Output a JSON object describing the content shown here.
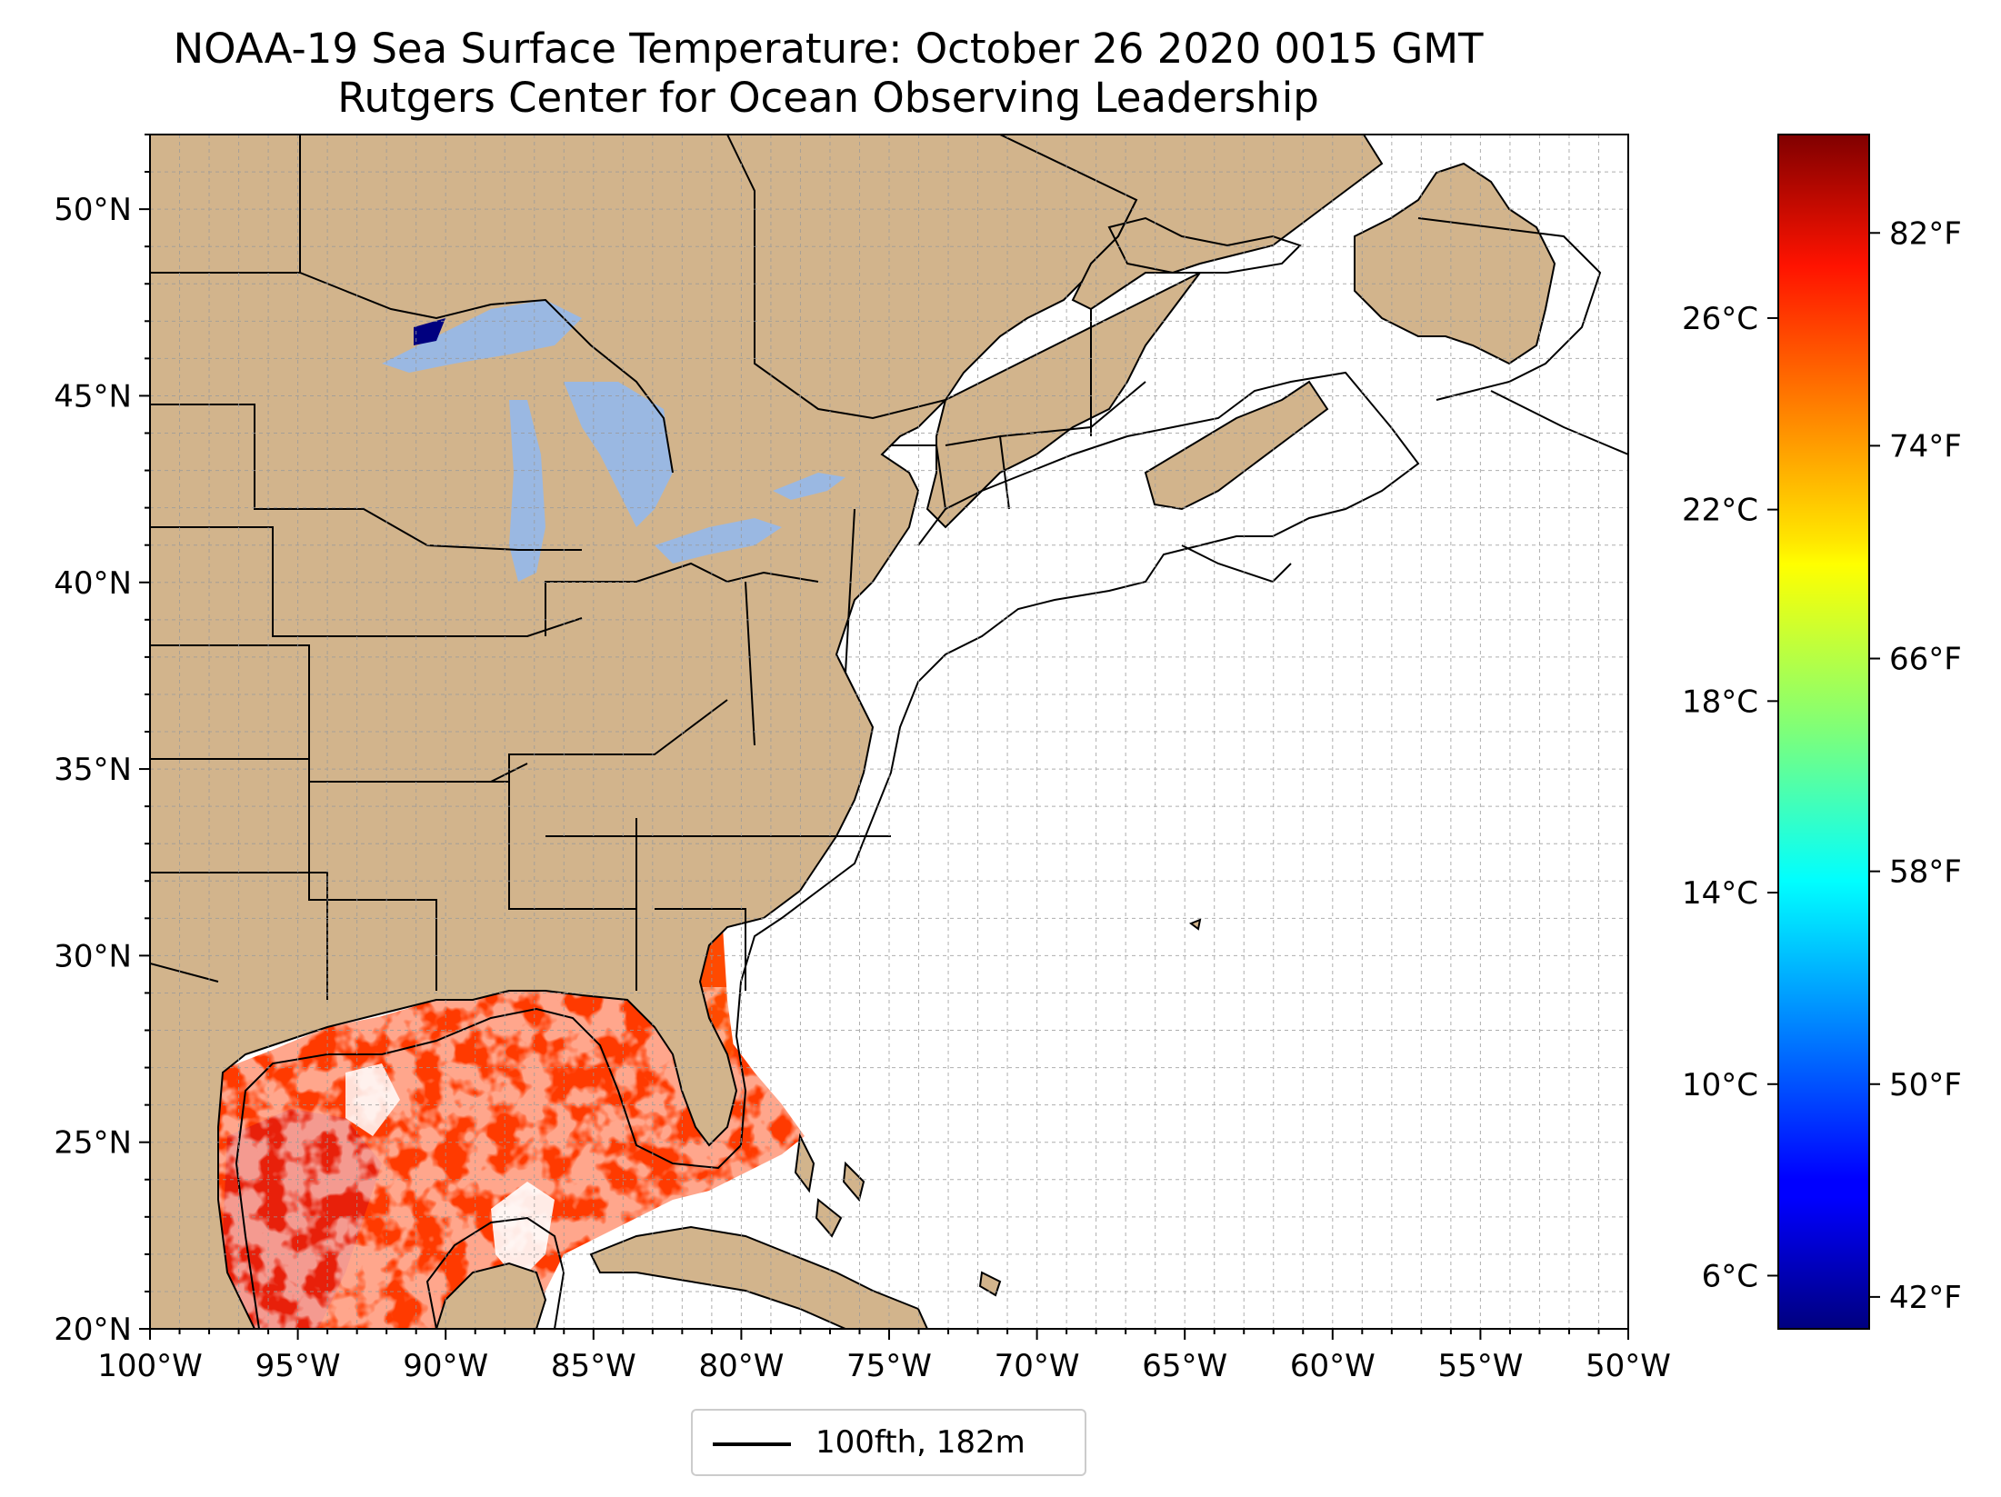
{
  "title": {
    "line1": "NOAA-19 Sea Surface Temperature: October 26 2020 0015 GMT",
    "line2": "Rutgers Center for Ocean Observing Leadership"
  },
  "map": {
    "lon_range": [
      -100,
      -50
    ],
    "lat_range": [
      20,
      52
    ],
    "lon_ticks": [
      {
        "value": -100,
        "label": "100°W"
      },
      {
        "value": -95,
        "label": "95°W"
      },
      {
        "value": -90,
        "label": "90°W"
      },
      {
        "value": -85,
        "label": "85°W"
      },
      {
        "value": -80,
        "label": "80°W"
      },
      {
        "value": -75,
        "label": "75°W"
      },
      {
        "value": -70,
        "label": "70°W"
      },
      {
        "value": -65,
        "label": "65°W"
      },
      {
        "value": -60,
        "label": "60°W"
      },
      {
        "value": -55,
        "label": "55°W"
      },
      {
        "value": -50,
        "label": "50°W"
      }
    ],
    "lat_ticks": [
      {
        "value": 20,
        "label": "20°N"
      },
      {
        "value": 25,
        "label": "25°N"
      },
      {
        "value": 30,
        "label": "30°N"
      },
      {
        "value": 35,
        "label": "35°N"
      },
      {
        "value": 40,
        "label": "40°N"
      },
      {
        "value": 45,
        "label": "45°N"
      },
      {
        "value": 50,
        "label": "50°N"
      }
    ],
    "gridlines": "dashed, 1° spacing",
    "colors": {
      "land": "#d2b48c",
      "lakes": "#9ab8e2",
      "ocean_no_data": "#ffffff",
      "borders": "#000000",
      "sst_warm": "#ff3a00"
    }
  },
  "colorbar": {
    "colormap": "jet",
    "celsius_ticks": [
      {
        "value": 26,
        "label": "26°C"
      },
      {
        "value": 22,
        "label": "22°C"
      },
      {
        "value": 18,
        "label": "18°C"
      },
      {
        "value": 14,
        "label": "14°C"
      },
      {
        "value": 10,
        "label": "10°C"
      },
      {
        "value": 6,
        "label": "6°C"
      }
    ],
    "fahrenheit_ticks": [
      {
        "value": 82,
        "label": "82°F"
      },
      {
        "value": 74,
        "label": "74°F"
      },
      {
        "value": 66,
        "label": "66°F"
      },
      {
        "value": 58,
        "label": "58°F"
      },
      {
        "value": 50,
        "label": "50°F"
      },
      {
        "value": 42,
        "label": "42°F"
      }
    ],
    "range_f": [
      40.8,
      85.7
    ]
  },
  "legend": {
    "entry": "100fth, 182m",
    "line_color": "#000000"
  }
}
